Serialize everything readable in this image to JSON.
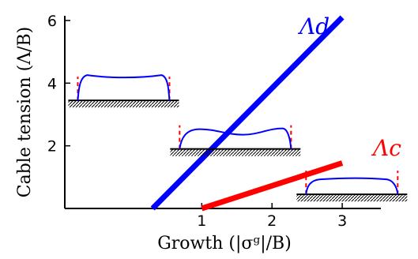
{
  "chart_data": {
    "type": "line",
    "xlabel": "Growth (|σᵍ|/B)",
    "ylabel": "Cable tension (Λ/B)",
    "xlim": [
      -0.95,
      3.55
    ],
    "ylim": [
      0,
      6.15
    ],
    "xticks": [
      "1",
      "2",
      "3"
    ],
    "yticks": [
      "2",
      "4",
      "6"
    ],
    "grid": false,
    "series": [
      {
        "name": "Λd",
        "color": "#0000ff",
        "x": [
          0.3,
          3.0
        ],
        "y": [
          0.0,
          6.1
        ]
      },
      {
        "name": "Λc",
        "color": "#ff0000",
        "x": [
          1.0,
          3.0
        ],
        "y": [
          0.0,
          1.45
        ]
      }
    ],
    "insets": [
      {
        "shape": "flat-top with edge bumps",
        "x": -0.9,
        "y": 3.45
      },
      {
        "shape": "central dip with edge humps",
        "x": 0.55,
        "y": 1.9
      },
      {
        "shape": "wide flat top",
        "x": 2.35,
        "y": 0.45
      }
    ]
  }
}
